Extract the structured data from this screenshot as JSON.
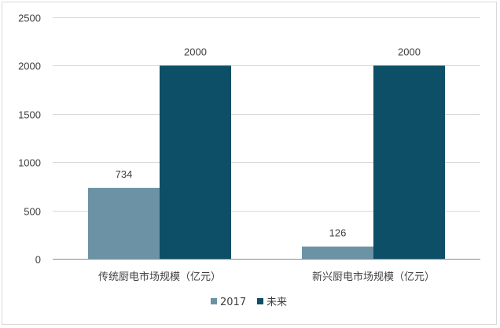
{
  "chart_data": {
    "type": "bar",
    "title": "",
    "xlabel": "",
    "ylabel": "",
    "categories": [
      "传统厨电市场规模（亿元）",
      "新兴厨电市场规模（亿元）"
    ],
    "series": [
      {
        "name": "2017",
        "values": [
          734,
          126
        ],
        "color": "#6b93a5"
      },
      {
        "name": "未来",
        "values": [
          2000,
          2000
        ],
        "color": "#0c4f66"
      }
    ],
    "ylim": [
      0,
      2500
    ],
    "yticks": [
      0,
      500,
      1000,
      1500,
      2000,
      2500
    ],
    "grid": true,
    "legend_position": "bottom"
  }
}
